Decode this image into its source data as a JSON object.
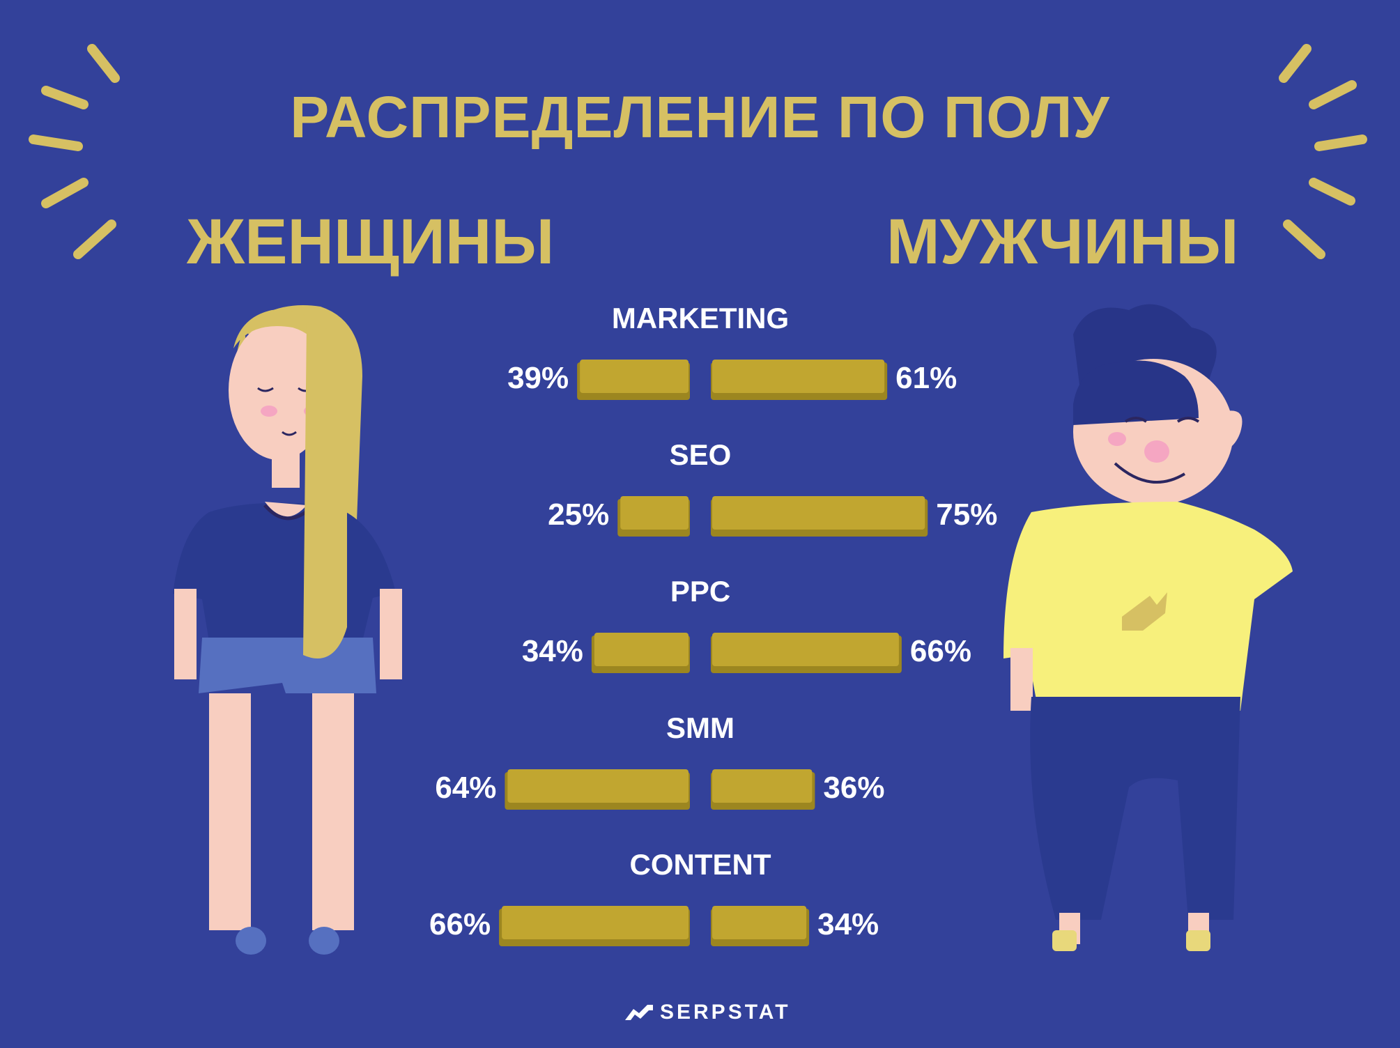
{
  "title": "РАСПРЕДЕЛЕНИЕ ПО ПОЛУ",
  "labels": {
    "left": "ЖЕНЩИНЫ",
    "right": "МУЖЧИНЫ"
  },
  "logo_text": "SERPSTAT",
  "colors": {
    "background": "#33419a",
    "accent": "#d6c063",
    "bar": "#c1a630",
    "bar_edge": "#9c8620",
    "text": "#ffffff"
  },
  "chart_data": {
    "type": "bar",
    "orientation": "horizontal-diverging",
    "categories": [
      "MARKETING",
      "SEO",
      "PPC",
      "SMM",
      "CONTENT"
    ],
    "series": [
      {
        "name": "ЖЕНЩИНЫ",
        "values": [
          39,
          25,
          34,
          64,
          66
        ]
      },
      {
        "name": "МУЖЧИНЫ",
        "values": [
          61,
          75,
          66,
          36,
          34
        ]
      }
    ],
    "unit": "%"
  }
}
